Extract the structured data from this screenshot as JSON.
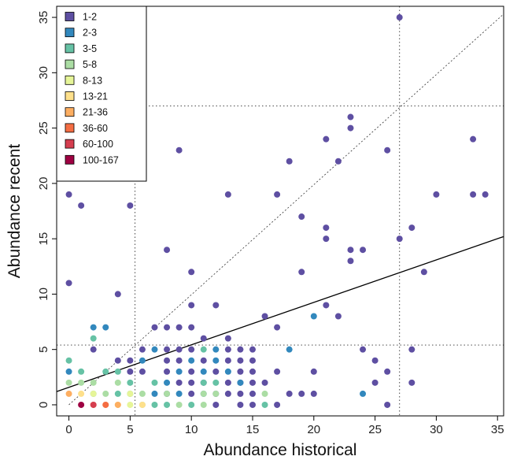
{
  "chart_data": {
    "type": "scatter",
    "xlabel": "Abundance historical",
    "ylabel": "Abundance recent",
    "xlim": [
      -1,
      35.5
    ],
    "ylim": [
      -1,
      36
    ],
    "xticks": [
      0,
      5,
      10,
      15,
      20,
      25,
      30,
      35
    ],
    "yticks": [
      0,
      5,
      10,
      15,
      20,
      25,
      30,
      35
    ],
    "grid": false,
    "legend_position": "top-left",
    "legend": [
      {
        "label": "1-2",
        "color": "#5E4FA2"
      },
      {
        "label": "2-3",
        "color": "#3288BD"
      },
      {
        "label": "3-5",
        "color": "#66C2A5"
      },
      {
        "label": "5-8",
        "color": "#ABDDA4"
      },
      {
        "label": "8-13",
        "color": "#E6F598"
      },
      {
        "label": "13-21",
        "color": "#FEE08B"
      },
      {
        "label": "21-36",
        "color": "#FDAE61"
      },
      {
        "label": "36-60",
        "color": "#F46D43"
      },
      {
        "label": "60-100",
        "color": "#D53E4F"
      },
      {
        "label": "100-167",
        "color": "#9E0142"
      }
    ],
    "reference_lines": {
      "vertical_dotted": [
        5.4,
        27
      ],
      "horizontal_dotted": [
        5.4,
        27
      ],
      "diagonal_dotted": {
        "from": [
          0,
          0
        ],
        "to": [
          35.5,
          35.3
        ]
      },
      "regression_solid": {
        "from": [
          -1,
          1.2
        ],
        "to": [
          35.5,
          15.2
        ]
      }
    },
    "points": [
      [
        0,
        19,
        0
      ],
      [
        0,
        11,
        0
      ],
      [
        1,
        18,
        0
      ],
      [
        5,
        18,
        0
      ],
      [
        9,
        23,
        0
      ],
      [
        8,
        14,
        0
      ],
      [
        4,
        10,
        0
      ],
      [
        10,
        12,
        0
      ],
      [
        27,
        35,
        0
      ],
      [
        23,
        26,
        0
      ],
      [
        23,
        25,
        0
      ],
      [
        21,
        24,
        0
      ],
      [
        18,
        22,
        0
      ],
      [
        22,
        22,
        0
      ],
      [
        26,
        23,
        0
      ],
      [
        33,
        24,
        0
      ],
      [
        13,
        19,
        0
      ],
      [
        17,
        19,
        0
      ],
      [
        30,
        19,
        0
      ],
      [
        33,
        19,
        0
      ],
      [
        34,
        19,
        0
      ],
      [
        19,
        17,
        0
      ],
      [
        21,
        16,
        0
      ],
      [
        21,
        15,
        0
      ],
      [
        27,
        15,
        0
      ],
      [
        28,
        16,
        0
      ],
      [
        23,
        14,
        0
      ],
      [
        24,
        14,
        0
      ],
      [
        23,
        13,
        0
      ],
      [
        19,
        12,
        0
      ],
      [
        29,
        12,
        0
      ],
      [
        10,
        9,
        0
      ],
      [
        12,
        9,
        0
      ],
      [
        16,
        8,
        0
      ],
      [
        22,
        8,
        0
      ],
      [
        21,
        9,
        0
      ],
      [
        7,
        7,
        0
      ],
      [
        8,
        7,
        0
      ],
      [
        9,
        7,
        0
      ],
      [
        10,
        7,
        0
      ],
      [
        17,
        7,
        0
      ],
      [
        11,
        6,
        0
      ],
      [
        13,
        6,
        0
      ],
      [
        2,
        5,
        0
      ],
      [
        4,
        4,
        0
      ],
      [
        6,
        5,
        0
      ],
      [
        8,
        5,
        0
      ],
      [
        9,
        5,
        0
      ],
      [
        10,
        5,
        0
      ],
      [
        24,
        5,
        0
      ],
      [
        28,
        5,
        0
      ],
      [
        5,
        4,
        0
      ],
      [
        6,
        3,
        0
      ],
      [
        25,
        4,
        0
      ],
      [
        26,
        3,
        0
      ],
      [
        20,
        3,
        0
      ],
      [
        25,
        2,
        0
      ],
      [
        28,
        2,
        0
      ],
      [
        5,
        3,
        0
      ],
      [
        8,
        3,
        0
      ],
      [
        10,
        3,
        0
      ],
      [
        12,
        3,
        0
      ],
      [
        14,
        3,
        0
      ],
      [
        15,
        3,
        0
      ],
      [
        17,
        3,
        0
      ],
      [
        9,
        4,
        0
      ],
      [
        11,
        4,
        0
      ],
      [
        13,
        4,
        0
      ],
      [
        14,
        4,
        0
      ],
      [
        15,
        4,
        0
      ],
      [
        8,
        4,
        0
      ],
      [
        13,
        5,
        0
      ],
      [
        14,
        5,
        0
      ],
      [
        15,
        5,
        0
      ],
      [
        9,
        2,
        0
      ],
      [
        10,
        2,
        0
      ],
      [
        11,
        2,
        0
      ],
      [
        13,
        2,
        0
      ],
      [
        14,
        2,
        0
      ],
      [
        15,
        2,
        0
      ],
      [
        16,
        2,
        0
      ],
      [
        8,
        1,
        0
      ],
      [
        10,
        1,
        0
      ],
      [
        12,
        1,
        0
      ],
      [
        13,
        1,
        0
      ],
      [
        14,
        1,
        0
      ],
      [
        15,
        1,
        0
      ],
      [
        18,
        1,
        0
      ],
      [
        19,
        1,
        0
      ],
      [
        20,
        1,
        0
      ],
      [
        12,
        0,
        0
      ],
      [
        14,
        0,
        0
      ],
      [
        15,
        0,
        0
      ],
      [
        17,
        0,
        0
      ],
      [
        26,
        0,
        0
      ],
      [
        2,
        7,
        1
      ],
      [
        3,
        7,
        1
      ],
      [
        20,
        8,
        1
      ],
      [
        7,
        5,
        1
      ],
      [
        12,
        5,
        1
      ],
      [
        18,
        5,
        1
      ],
      [
        0,
        3,
        1
      ],
      [
        6,
        4,
        1
      ],
      [
        8,
        2,
        1
      ],
      [
        10,
        4,
        1
      ],
      [
        12,
        4,
        1
      ],
      [
        9,
        3,
        1
      ],
      [
        11,
        3,
        1
      ],
      [
        13,
        3,
        1
      ],
      [
        14,
        2,
        1
      ],
      [
        7,
        1,
        1
      ],
      [
        9,
        1,
        1
      ],
      [
        11,
        1,
        1
      ],
      [
        24,
        1,
        1
      ],
      [
        2,
        6,
        2
      ],
      [
        0,
        4,
        2
      ],
      [
        1,
        3,
        2
      ],
      [
        3,
        3,
        2
      ],
      [
        4,
        3,
        2
      ],
      [
        11,
        5,
        2
      ],
      [
        5,
        2,
        2
      ],
      [
        7,
        2,
        2
      ],
      [
        11,
        2,
        2
      ],
      [
        12,
        2,
        2
      ],
      [
        2,
        1,
        2
      ],
      [
        4,
        1,
        2
      ],
      [
        5,
        1,
        2
      ],
      [
        7,
        0,
        2
      ],
      [
        8,
        0,
        2
      ],
      [
        10,
        0,
        2
      ],
      [
        16,
        0,
        2
      ],
      [
        0,
        2,
        3
      ],
      [
        1,
        2,
        3
      ],
      [
        2,
        2,
        3
      ],
      [
        4,
        2,
        3
      ],
      [
        3,
        1,
        3
      ],
      [
        6,
        1,
        3
      ],
      [
        8,
        1,
        3
      ],
      [
        11,
        1,
        3
      ],
      [
        12,
        1,
        3
      ],
      [
        16,
        1,
        3
      ],
      [
        6,
        0,
        3
      ],
      [
        9,
        0,
        3
      ],
      [
        11,
        0,
        3
      ],
      [
        2,
        1,
        4
      ],
      [
        5,
        1,
        4
      ],
      [
        5,
        0,
        4
      ],
      [
        4,
        0,
        4
      ],
      [
        1,
        1,
        5
      ],
      [
        3,
        0,
        5
      ],
      [
        6,
        0,
        5
      ],
      [
        0,
        1,
        6
      ],
      [
        2,
        0,
        6
      ],
      [
        4,
        0,
        6
      ],
      [
        3,
        0,
        7
      ],
      [
        2,
        0,
        8
      ],
      [
        1,
        0,
        9
      ]
    ]
  }
}
